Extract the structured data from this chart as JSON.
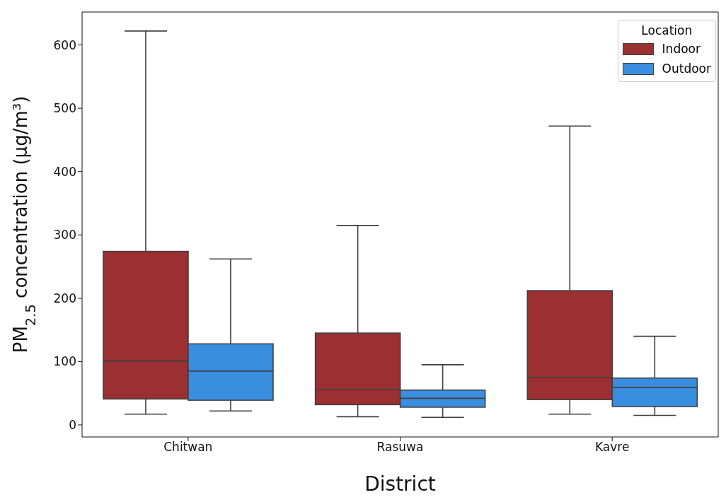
{
  "chart_data": {
    "type": "box",
    "xlabel": "District",
    "ylabel": "PM$_{2.5}$ concentration (µg/m³)",
    "legend_title": "Location",
    "legend": "top right",
    "categories": [
      "Chitwan",
      "Rasuwa",
      "Kavre"
    ],
    "ylim": [
      -19,
      652
    ],
    "yticks": [
      0,
      100,
      200,
      300,
      400,
      500,
      600
    ],
    "series": [
      {
        "name": "Indoor",
        "color": "#9b2f32",
        "boxes": [
          {
            "low": 17,
            "q1": 41,
            "median": 101,
            "q3": 274,
            "high": 622
          },
          {
            "low": 13,
            "q1": 32,
            "median": 56,
            "q3": 145,
            "high": 315
          },
          {
            "low": 17,
            "q1": 40,
            "median": 75,
            "q3": 212,
            "high": 472
          }
        ]
      },
      {
        "name": "Outdoor",
        "color": "#3a8ee0",
        "boxes": [
          {
            "low": 22,
            "q1": 39,
            "median": 85,
            "q3": 128,
            "high": 262
          },
          {
            "low": 12,
            "q1": 28,
            "median": 42,
            "q3": 55,
            "high": 95
          },
          {
            "low": 15,
            "q1": 29,
            "median": 59,
            "q3": 74,
            "high": 140
          }
        ]
      }
    ]
  }
}
